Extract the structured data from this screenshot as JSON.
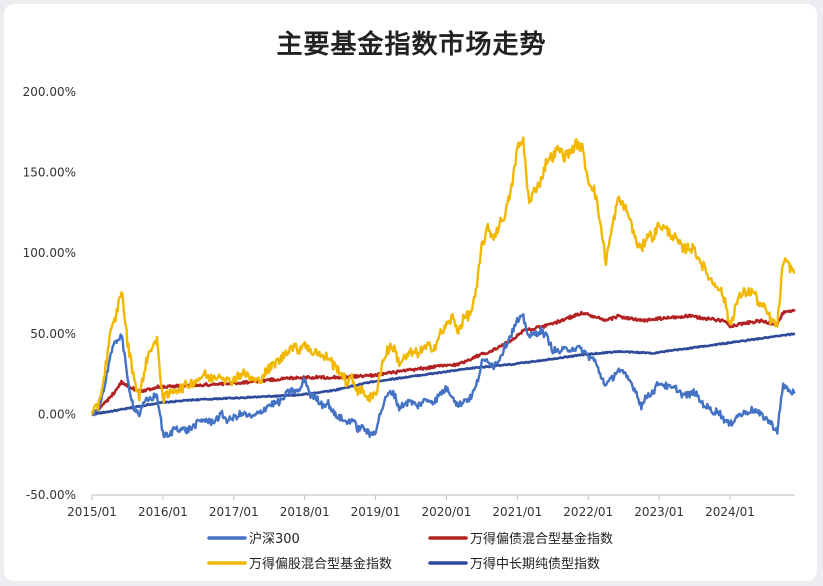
{
  "chart_data": {
    "type": "line",
    "title": "主要基金指数市场走势",
    "xlabel": "",
    "ylabel": "",
    "x_range": [
      "2015-01",
      "2024-12"
    ],
    "ylim": [
      -50,
      200
    ],
    "yticks": [
      -50,
      0,
      50,
      100,
      150,
      200
    ],
    "ytick_labels": [
      "-50.00%",
      "0.00%",
      "50.00%",
      "100.00%",
      "150.00%",
      "200.00%"
    ],
    "xticks": [
      "2015-01",
      "2016-01",
      "2017-01",
      "2018-01",
      "2019-01",
      "2020-01",
      "2021-01",
      "2022-01",
      "2023-01",
      "2024-01"
    ],
    "xtick_labels": [
      "2015/01",
      "2016/01",
      "2017/01",
      "2018/01",
      "2019/01",
      "2020/01",
      "2021/01",
      "2022/01",
      "2023/01",
      "2024/01"
    ],
    "grid": false,
    "legend_position": "bottom",
    "series": [
      {
        "name": "沪深300",
        "color": "#4472c4",
        "points": [
          [
            "2015-01",
            0
          ],
          [
            "2015-02",
            3
          ],
          [
            "2015-03",
            15
          ],
          [
            "2015-04",
            35
          ],
          [
            "2015-05",
            45
          ],
          [
            "2015-06",
            50
          ],
          [
            "2015-07",
            22
          ],
          [
            "2015-08",
            5
          ],
          [
            "2015-09",
            0
          ],
          [
            "2015-10",
            8
          ],
          [
            "2015-11",
            10
          ],
          [
            "2015-12",
            12
          ],
          [
            "2016-01",
            -12
          ],
          [
            "2016-02",
            -14
          ],
          [
            "2016-03",
            -8
          ],
          [
            "2016-04",
            -9
          ],
          [
            "2016-05",
            -10
          ],
          [
            "2016-06",
            -8
          ],
          [
            "2016-07",
            -5
          ],
          [
            "2016-08",
            -3
          ],
          [
            "2016-09",
            -5
          ],
          [
            "2016-10",
            -3
          ],
          [
            "2016-11",
            0
          ],
          [
            "2016-12",
            -4
          ],
          [
            "2017-01",
            -2
          ],
          [
            "2017-02",
            0
          ],
          [
            "2017-03",
            0
          ],
          [
            "2017-04",
            -2
          ],
          [
            "2017-05",
            0
          ],
          [
            "2017-06",
            3
          ],
          [
            "2017-07",
            6
          ],
          [
            "2017-08",
            7
          ],
          [
            "2017-09",
            8
          ],
          [
            "2017-10",
            13
          ],
          [
            "2017-11",
            15
          ],
          [
            "2017-12",
            14
          ],
          [
            "2018-01",
            22
          ],
          [
            "2018-02",
            12
          ],
          [
            "2018-03",
            10
          ],
          [
            "2018-04",
            6
          ],
          [
            "2018-05",
            7
          ],
          [
            "2018-06",
            0
          ],
          [
            "2018-07",
            -2
          ],
          [
            "2018-08",
            -5
          ],
          [
            "2018-09",
            -3
          ],
          [
            "2018-10",
            -9
          ],
          [
            "2018-11",
            -8
          ],
          [
            "2018-12",
            -13
          ],
          [
            "2019-01",
            -10
          ],
          [
            "2019-02",
            3
          ],
          [
            "2019-03",
            12
          ],
          [
            "2019-04",
            14
          ],
          [
            "2019-05",
            4
          ],
          [
            "2019-06",
            7
          ],
          [
            "2019-07",
            8
          ],
          [
            "2019-08",
            5
          ],
          [
            "2019-09",
            8
          ],
          [
            "2019-10",
            9
          ],
          [
            "2019-11",
            8
          ],
          [
            "2019-12",
            13
          ],
          [
            "2020-01",
            16
          ],
          [
            "2020-02",
            12
          ],
          [
            "2020-03",
            5
          ],
          [
            "2020-04",
            9
          ],
          [
            "2020-05",
            10
          ],
          [
            "2020-06",
            17
          ],
          [
            "2020-07",
            32
          ],
          [
            "2020-08",
            34
          ],
          [
            "2020-09",
            30
          ],
          [
            "2020-10",
            35
          ],
          [
            "2020-11",
            43
          ],
          [
            "2020-12",
            50
          ],
          [
            "2021-01",
            58
          ],
          [
            "2021-02",
            60
          ],
          [
            "2021-03",
            48
          ],
          [
            "2021-04",
            50
          ],
          [
            "2021-05",
            52
          ],
          [
            "2021-06",
            48
          ],
          [
            "2021-07",
            40
          ],
          [
            "2021-08",
            39
          ],
          [
            "2021-09",
            40
          ],
          [
            "2021-10",
            41
          ],
          [
            "2021-11",
            41
          ],
          [
            "2021-12",
            40
          ],
          [
            "2022-01",
            36
          ],
          [
            "2022-02",
            34
          ],
          [
            "2022-03",
            25
          ],
          [
            "2022-04",
            18
          ],
          [
            "2022-05",
            22
          ],
          [
            "2022-06",
            28
          ],
          [
            "2022-07",
            25
          ],
          [
            "2022-08",
            21
          ],
          [
            "2022-09",
            15
          ],
          [
            "2022-10",
            5
          ],
          [
            "2022-11",
            12
          ],
          [
            "2022-12",
            14
          ],
          [
            "2023-01",
            20
          ],
          [
            "2023-02",
            18
          ],
          [
            "2023-03",
            16
          ],
          [
            "2023-04",
            16
          ],
          [
            "2023-05",
            12
          ],
          [
            "2023-06",
            12
          ],
          [
            "2023-07",
            14
          ],
          [
            "2023-08",
            8
          ],
          [
            "2023-09",
            5
          ],
          [
            "2023-10",
            2
          ],
          [
            "2023-11",
            2
          ],
          [
            "2023-12",
            -3
          ],
          [
            "2024-01",
            -7
          ],
          [
            "2024-02",
            -1
          ],
          [
            "2024-03",
            0
          ],
          [
            "2024-04",
            2
          ],
          [
            "2024-05",
            3
          ],
          [
            "2024-06",
            0
          ],
          [
            "2024-07",
            -2
          ],
          [
            "2024-08",
            -6
          ],
          [
            "2024-09",
            -10
          ],
          [
            "2024-10",
            18
          ],
          [
            "2024-11",
            15
          ],
          [
            "2024-12",
            13
          ]
        ]
      },
      {
        "name": "万得偏债混合型基金指数",
        "color": "#b22222",
        "points": [
          [
            "2015-01",
            0
          ],
          [
            "2015-04",
            10
          ],
          [
            "2015-06",
            20
          ],
          [
            "2015-09",
            14
          ],
          [
            "2015-12",
            17
          ],
          [
            "2016-06",
            18
          ],
          [
            "2016-12",
            19
          ],
          [
            "2017-06",
            21
          ],
          [
            "2017-12",
            23
          ],
          [
            "2018-06",
            23
          ],
          [
            "2018-12",
            24
          ],
          [
            "2019-06",
            27
          ],
          [
            "2019-12",
            30
          ],
          [
            "2020-03",
            31
          ],
          [
            "2020-06",
            36
          ],
          [
            "2020-09",
            40
          ],
          [
            "2020-12",
            46
          ],
          [
            "2021-02",
            52
          ],
          [
            "2021-06",
            55
          ],
          [
            "2021-12",
            63
          ],
          [
            "2022-04",
            58
          ],
          [
            "2022-06",
            61
          ],
          [
            "2022-10",
            58
          ],
          [
            "2022-12",
            59
          ],
          [
            "2023-06",
            61
          ],
          [
            "2023-12",
            58
          ],
          [
            "2024-01",
            55
          ],
          [
            "2024-06",
            58
          ],
          [
            "2024-09",
            56
          ],
          [
            "2024-10",
            63
          ],
          [
            "2024-12",
            64
          ]
        ]
      },
      {
        "name": "万得偏股混合型基金指数",
        "color": "#f2b800",
        "points": [
          [
            "2015-01",
            0
          ],
          [
            "2015-02",
            5
          ],
          [
            "2015-03",
            22
          ],
          [
            "2015-04",
            48
          ],
          [
            "2015-05",
            60
          ],
          [
            "2015-06",
            78
          ],
          [
            "2015-07",
            45
          ],
          [
            "2015-08",
            25
          ],
          [
            "2015-09",
            10
          ],
          [
            "2015-10",
            30
          ],
          [
            "2015-11",
            42
          ],
          [
            "2015-12",
            45
          ],
          [
            "2016-01",
            10
          ],
          [
            "2016-02",
            12
          ],
          [
            "2016-03",
            16
          ],
          [
            "2016-04",
            16
          ],
          [
            "2016-05",
            18
          ],
          [
            "2016-06",
            20
          ],
          [
            "2016-07",
            22
          ],
          [
            "2016-08",
            25
          ],
          [
            "2016-09",
            22
          ],
          [
            "2016-10",
            24
          ],
          [
            "2016-11",
            25
          ],
          [
            "2016-12",
            20
          ],
          [
            "2017-01",
            22
          ],
          [
            "2017-02",
            25
          ],
          [
            "2017-03",
            25
          ],
          [
            "2017-04",
            22
          ],
          [
            "2017-05",
            20
          ],
          [
            "2017-06",
            25
          ],
          [
            "2017-07",
            28
          ],
          [
            "2017-08",
            32
          ],
          [
            "2017-09",
            34
          ],
          [
            "2017-10",
            40
          ],
          [
            "2017-11",
            42
          ],
          [
            "2017-12",
            40
          ],
          [
            "2018-01",
            45
          ],
          [
            "2018-02",
            38
          ],
          [
            "2018-03",
            40
          ],
          [
            "2018-04",
            35
          ],
          [
            "2018-05",
            36
          ],
          [
            "2018-06",
            30
          ],
          [
            "2018-07",
            27
          ],
          [
            "2018-08",
            20
          ],
          [
            "2018-09",
            22
          ],
          [
            "2018-10",
            15
          ],
          [
            "2018-11",
            14
          ],
          [
            "2018-12",
            10
          ],
          [
            "2019-01",
            12
          ],
          [
            "2019-02",
            30
          ],
          [
            "2019-03",
            40
          ],
          [
            "2019-04",
            42
          ],
          [
            "2019-05",
            32
          ],
          [
            "2019-06",
            35
          ],
          [
            "2019-07",
            38
          ],
          [
            "2019-08",
            38
          ],
          [
            "2019-09",
            40
          ],
          [
            "2019-10",
            42
          ],
          [
            "2019-11",
            42
          ],
          [
            "2019-12",
            50
          ],
          [
            "2020-01",
            55
          ],
          [
            "2020-02",
            60
          ],
          [
            "2020-03",
            52
          ],
          [
            "2020-04",
            60
          ],
          [
            "2020-05",
            62
          ],
          [
            "2020-06",
            75
          ],
          [
            "2020-07",
            105
          ],
          [
            "2020-08",
            115
          ],
          [
            "2020-09",
            110
          ],
          [
            "2020-10",
            118
          ],
          [
            "2020-11",
            125
          ],
          [
            "2020-12",
            140
          ],
          [
            "2021-01",
            165
          ],
          [
            "2021-02",
            170
          ],
          [
            "2021-03",
            130
          ],
          [
            "2021-04",
            140
          ],
          [
            "2021-05",
            145
          ],
          [
            "2021-06",
            158
          ],
          [
            "2021-07",
            160
          ],
          [
            "2021-08",
            165
          ],
          [
            "2021-09",
            160
          ],
          [
            "2021-10",
            163
          ],
          [
            "2021-11",
            168
          ],
          [
            "2021-12",
            165
          ],
          [
            "2022-01",
            145
          ],
          [
            "2022-02",
            140
          ],
          [
            "2022-03",
            120
          ],
          [
            "2022-04",
            95
          ],
          [
            "2022-05",
            115
          ],
          [
            "2022-06",
            133
          ],
          [
            "2022-07",
            130
          ],
          [
            "2022-08",
            122
          ],
          [
            "2022-09",
            108
          ],
          [
            "2022-10",
            102
          ],
          [
            "2022-11",
            112
          ],
          [
            "2022-12",
            110
          ],
          [
            "2023-01",
            118
          ],
          [
            "2023-02",
            115
          ],
          [
            "2023-03",
            112
          ],
          [
            "2023-04",
            108
          ],
          [
            "2023-05",
            102
          ],
          [
            "2023-06",
            104
          ],
          [
            "2023-07",
            102
          ],
          [
            "2023-08",
            95
          ],
          [
            "2023-09",
            88
          ],
          [
            "2023-10",
            82
          ],
          [
            "2023-11",
            80
          ],
          [
            "2023-12",
            72
          ],
          [
            "2024-01",
            55
          ],
          [
            "2024-02",
            68
          ],
          [
            "2024-03",
            75
          ],
          [
            "2024-04",
            76
          ],
          [
            "2024-05",
            76
          ],
          [
            "2024-06",
            68
          ],
          [
            "2024-07",
            65
          ],
          [
            "2024-08",
            58
          ],
          [
            "2024-09",
            55
          ],
          [
            "2024-10",
            95
          ],
          [
            "2024-11",
            92
          ],
          [
            "2024-12",
            88
          ]
        ]
      },
      {
        "name": "万得中长期纯债型指数",
        "color": "#2f4a9a",
        "points": [
          [
            "2015-01",
            0
          ],
          [
            "2015-06",
            3
          ],
          [
            "2015-12",
            7
          ],
          [
            "2016-06",
            9
          ],
          [
            "2016-12",
            10
          ],
          [
            "2017-06",
            11
          ],
          [
            "2017-12",
            12
          ],
          [
            "2018-06",
            15
          ],
          [
            "2018-12",
            20
          ],
          [
            "2019-06",
            23
          ],
          [
            "2019-12",
            26
          ],
          [
            "2020-06",
            29
          ],
          [
            "2020-12",
            31
          ],
          [
            "2021-06",
            34
          ],
          [
            "2021-12",
            37
          ],
          [
            "2022-06",
            39
          ],
          [
            "2022-12",
            38
          ],
          [
            "2023-06",
            41
          ],
          [
            "2023-12",
            44
          ],
          [
            "2024-06",
            47
          ],
          [
            "2024-12",
            50
          ]
        ]
      }
    ]
  }
}
